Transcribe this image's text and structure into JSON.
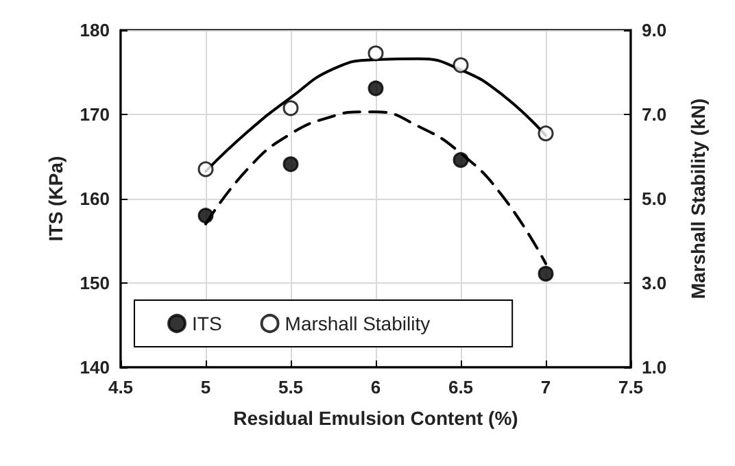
{
  "chart_data": {
    "type": "scatter",
    "xlabel": "Residual Emulsion Content (%)",
    "ylabel": "ITS (KPa)",
    "y2label": "Marshall Stability (kN)",
    "xlim": [
      4.5,
      7.5
    ],
    "xticks": [
      4.5,
      5,
      5.5,
      6,
      6.5,
      7,
      7.5
    ],
    "ylim": [
      140,
      180
    ],
    "yticks": [
      140,
      150,
      160,
      170,
      180
    ],
    "y2lim": [
      1,
      9
    ],
    "y2ticks": [
      {
        "value": 1,
        "label": "1.0"
      },
      {
        "value": 3,
        "label": "3.0"
      },
      {
        "value": 5,
        "label": "5.0"
      },
      {
        "value": 7,
        "label": "7.0"
      },
      {
        "value": 9,
        "label": "9.0"
      }
    ],
    "grid": true,
    "legend": "bottom left",
    "marker": "circle",
    "series": [
      {
        "name": "ITS",
        "color": "#000000",
        "x": [
          5,
          5.5,
          6,
          6.5,
          7
        ],
        "values": [
          158.0,
          164.1,
          173.1,
          164.6,
          151.1
        ]
      },
      {
        "name": "Marshall Stability",
        "color": "#ffffff",
        "axis": "y2",
        "x": [
          5,
          5.5,
          6,
          6.5,
          7
        ],
        "values": [
          5.7,
          7.15,
          8.45,
          8.17,
          6.55
        ]
      },
      {
        "type": "line",
        "color": "#000000",
        "line_style": "dashed",
        "marker": "none",
        "x": [
          5,
          5.25,
          5.5,
          5.75,
          5.92,
          6,
          6.25,
          6.5,
          6.75,
          7
        ],
        "values": [
          157.0,
          163.6,
          167.7,
          169.8,
          170.3,
          170.3,
          168.6,
          165.4,
          160.2,
          152.3
        ]
      },
      {
        "type": "line",
        "color": "#000000",
        "line_style": "solid",
        "marker": "none",
        "axis": "y2",
        "x": [
          5,
          5.25,
          5.5,
          5.75,
          6,
          6.25,
          6.5,
          6.75,
          7
        ],
        "values": [
          5.65,
          6.6,
          7.4,
          8.08,
          8.3,
          8.32,
          8.06,
          7.45,
          6.5
        ]
      }
    ]
  }
}
